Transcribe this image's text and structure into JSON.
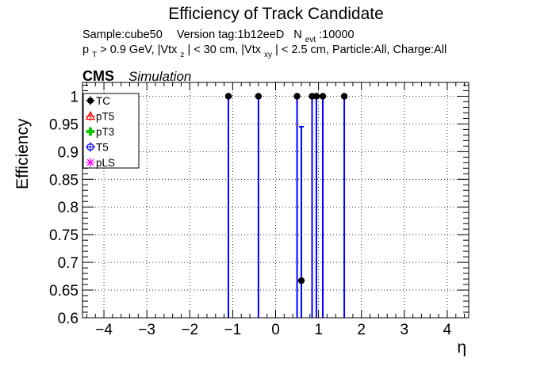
{
  "chart_data": {
    "type": "scatter",
    "title": "Efficiency of Track Candidate",
    "info_line1": {
      "sample": "Sample:cube50",
      "version": "Version tag:1b12eeD",
      "nevt_main": "N",
      "nevt_sub": "evt",
      "nevt_value": ":10000"
    },
    "info_line2": {
      "p": "p",
      "p_sub": "T",
      "p_rest": " > 0.9 GeV, |Vtx",
      "z_sub": "z",
      "z_rest": "| < 30 cm, |Vtx",
      "xy_sub": "xy",
      "xy_rest": "| < 2.5 cm, Particle:All, Charge:All"
    },
    "cms_label": "CMS",
    "simulation_label": "Simulation",
    "xlabel": "η",
    "ylabel": "Efficiency",
    "xlim": [
      -4.5,
      4.5
    ],
    "ylim": [
      0.6,
      1.025
    ],
    "grid": true,
    "x_ticks": [
      {
        "v": -4,
        "label": "−4"
      },
      {
        "v": -3,
        "label": "−3"
      },
      {
        "v": -2,
        "label": "−2"
      },
      {
        "v": -1,
        "label": "−1"
      },
      {
        "v": 0,
        "label": "0"
      },
      {
        "v": 1,
        "label": "1"
      },
      {
        "v": 2,
        "label": "2"
      },
      {
        "v": 3,
        "label": "3"
      },
      {
        "v": 4,
        "label": "4"
      }
    ],
    "y_ticks": [
      {
        "v": 0.6,
        "label": "0.6"
      },
      {
        "v": 0.65,
        "label": "0.65"
      },
      {
        "v": 0.7,
        "label": "0.7"
      },
      {
        "v": 0.75,
        "label": "0.75"
      },
      {
        "v": 0.8,
        "label": "0.8"
      },
      {
        "v": 0.85,
        "label": "0.85"
      },
      {
        "v": 0.9,
        "label": "0.9"
      },
      {
        "v": 0.95,
        "label": "0.95"
      },
      {
        "v": 1,
        "label": "1"
      }
    ],
    "legend_position": "top-left",
    "legend": [
      {
        "name": "TC",
        "color": "#000000",
        "marker": "filled-circle"
      },
      {
        "name": "pT5",
        "color": "#ff0000",
        "marker": "open-triangle"
      },
      {
        "name": "pT3",
        "color": "#00cc00",
        "marker": "filled-cross"
      },
      {
        "name": "T5",
        "color": "#0000ff",
        "marker": "open-circle"
      },
      {
        "name": "pLS",
        "color": "#ff00ff",
        "marker": "star"
      }
    ],
    "series": [
      {
        "name": "TC",
        "color": "#000000",
        "errcolor": "#0000ff",
        "points": [
          {
            "x": -1.1,
            "y": 1.0,
            "ylo": 0.6,
            "yhi": 1.0
          },
          {
            "x": -0.4,
            "y": 1.0,
            "ylo": 0.6,
            "yhi": 1.0
          },
          {
            "x": 0.5,
            "y": 1.0,
            "ylo": 0.6,
            "yhi": 1.0
          },
          {
            "x": 0.6,
            "y": 0.667,
            "ylo": 0.6,
            "yhi": 0.945
          },
          {
            "x": 0.85,
            "y": 1.0,
            "ylo": 0.6,
            "yhi": 1.0
          },
          {
            "x": 0.95,
            "y": 1.0,
            "ylo": 0.6,
            "yhi": 1.0
          },
          {
            "x": 1.1,
            "y": 1.0,
            "ylo": 0.6,
            "yhi": 1.0
          },
          {
            "x": 1.6,
            "y": 1.0,
            "ylo": 0.6,
            "yhi": 1.0
          }
        ]
      }
    ]
  }
}
